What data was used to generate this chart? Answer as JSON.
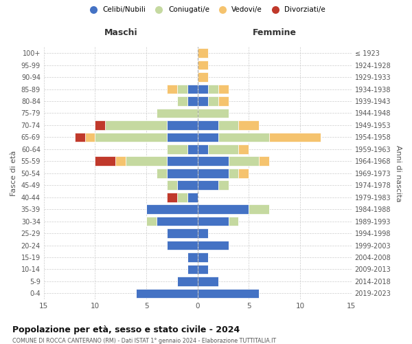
{
  "age_groups": [
    "0-4",
    "5-9",
    "10-14",
    "15-19",
    "20-24",
    "25-29",
    "30-34",
    "35-39",
    "40-44",
    "45-49",
    "50-54",
    "55-59",
    "60-64",
    "65-69",
    "70-74",
    "75-79",
    "80-84",
    "85-89",
    "90-94",
    "95-99",
    "100+"
  ],
  "birth_years": [
    "2019-2023",
    "2014-2018",
    "2009-2013",
    "2004-2008",
    "1999-2003",
    "1994-1998",
    "1989-1993",
    "1984-1988",
    "1979-1983",
    "1974-1978",
    "1969-1973",
    "1964-1968",
    "1959-1963",
    "1954-1958",
    "1949-1953",
    "1944-1948",
    "1939-1943",
    "1934-1938",
    "1929-1933",
    "1924-1928",
    "≤ 1923"
  ],
  "male": {
    "celibi": [
      6,
      2,
      1,
      1,
      3,
      3,
      4,
      5,
      1,
      2,
      3,
      3,
      1,
      3,
      3,
      0,
      1,
      1,
      0,
      0,
      0
    ],
    "coniugati": [
      0,
      0,
      0,
      0,
      0,
      0,
      1,
      0,
      1,
      1,
      1,
      4,
      2,
      7,
      6,
      4,
      1,
      1,
      0,
      0,
      0
    ],
    "vedovi": [
      0,
      0,
      0,
      0,
      0,
      0,
      0,
      0,
      0,
      0,
      0,
      1,
      0,
      1,
      0,
      0,
      0,
      1,
      0,
      0,
      0
    ],
    "divorziati": [
      0,
      0,
      0,
      0,
      0,
      0,
      0,
      0,
      1,
      0,
      0,
      2,
      0,
      1,
      1,
      0,
      0,
      0,
      0,
      0,
      0
    ]
  },
  "female": {
    "nubili": [
      6,
      2,
      1,
      1,
      3,
      1,
      3,
      5,
      0,
      2,
      3,
      3,
      1,
      2,
      2,
      0,
      1,
      1,
      0,
      0,
      0
    ],
    "coniugate": [
      0,
      0,
      0,
      0,
      0,
      0,
      1,
      2,
      0,
      1,
      1,
      3,
      3,
      5,
      2,
      3,
      1,
      1,
      0,
      0,
      0
    ],
    "vedove": [
      0,
      0,
      0,
      0,
      0,
      0,
      0,
      0,
      0,
      0,
      1,
      1,
      1,
      5,
      2,
      0,
      1,
      1,
      1,
      1,
      1
    ],
    "divorziate": [
      0,
      0,
      0,
      0,
      0,
      0,
      0,
      0,
      0,
      0,
      0,
      0,
      0,
      0,
      0,
      0,
      0,
      0,
      0,
      0,
      0
    ]
  },
  "colors": {
    "celibi": "#4472c4",
    "coniugati": "#c5d9a0",
    "vedovi": "#f5c36e",
    "divorziati": "#c0392b"
  },
  "title1": "Popolazione per età, sesso e stato civile - 2024",
  "title2": "COMUNE DI ROCCA CANTERANO (RM) - Dati ISTAT 1° gennaio 2024 - Elaborazione TUTTITALIA.IT",
  "xlabel_left": "Maschi",
  "xlabel_right": "Femmine",
  "ylabel_left": "Fasce di età",
  "ylabel_right": "Anni di nascita",
  "xlim": 15,
  "legend_labels": [
    "Celibi/Nubili",
    "Coniugati/e",
    "Vedovi/e",
    "Divorziati/e"
  ],
  "background_color": "#ffffff",
  "grid_color": "#cccccc"
}
